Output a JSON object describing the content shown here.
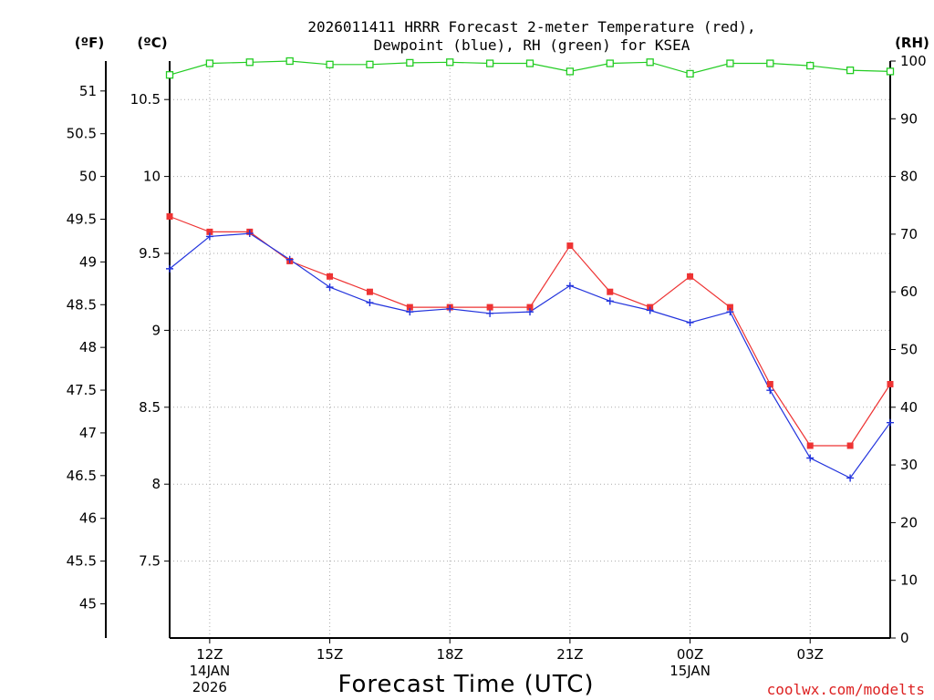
{
  "chart_data": {
    "type": "line",
    "title_line1": "2026011411 HRRR Forecast 2-meter Temperature (red),",
    "title_line2": "Dewpoint (blue), RH (green) for KSEA",
    "xlabel": "Forecast Time (UTC)",
    "credit": "coolwx.com/modelts",
    "unit_labels": {
      "fahrenheit": "(ºF)",
      "celsius": "(ºC)",
      "rh": "(RH)"
    },
    "x_ticks": [
      {
        "hour": 1,
        "label": "12Z",
        "sub1": "14JAN",
        "sub2": "2026"
      },
      {
        "hour": 4,
        "label": "15Z",
        "sub1": "",
        "sub2": ""
      },
      {
        "hour": 7,
        "label": "18Z",
        "sub1": "",
        "sub2": ""
      },
      {
        "hour": 10,
        "label": "21Z",
        "sub1": "",
        "sub2": ""
      },
      {
        "hour": 13,
        "label": "00Z",
        "sub1": "15JAN",
        "sub2": ""
      },
      {
        "hour": 16,
        "label": "03Z",
        "sub1": "",
        "sub2": ""
      }
    ],
    "x_range": [
      0,
      18
    ],
    "celsius_axis": {
      "range": [
        7.0,
        10.75
      ],
      "ticks": [
        {
          "value": 7.5,
          "label": "7.5"
        },
        {
          "value": 8,
          "label": "8"
        },
        {
          "value": 8.5,
          "label": "8.5"
        },
        {
          "value": 9,
          "label": "9"
        },
        {
          "value": 9.5,
          "label": "9.5"
        },
        {
          "value": 10,
          "label": "10"
        },
        {
          "value": 10.5,
          "label": "10.5"
        }
      ]
    },
    "fahrenheit_axis": {
      "ticks": [
        {
          "value": 45,
          "label": "45"
        },
        {
          "value": 45.5,
          "label": "45.5"
        },
        {
          "value": 46,
          "label": "46"
        },
        {
          "value": 46.5,
          "label": "46.5"
        },
        {
          "value": 47,
          "label": "47"
        },
        {
          "value": 47.5,
          "label": "47.5"
        },
        {
          "value": 48,
          "label": "48"
        },
        {
          "value": 48.5,
          "label": "48.5"
        },
        {
          "value": 49,
          "label": "49"
        },
        {
          "value": 49.5,
          "label": "49.5"
        },
        {
          "value": 50,
          "label": "50"
        },
        {
          "value": 50.5,
          "label": "50.5"
        },
        {
          "value": 51,
          "label": "51"
        }
      ]
    },
    "rh_axis": {
      "range": [
        0,
        100
      ],
      "ticks": [
        {
          "value": 0,
          "label": "0"
        },
        {
          "value": 10,
          "label": "10"
        },
        {
          "value": 20,
          "label": "20"
        },
        {
          "value": 30,
          "label": "30"
        },
        {
          "value": 40,
          "label": "40"
        },
        {
          "value": 50,
          "label": "50"
        },
        {
          "value": 60,
          "label": "60"
        },
        {
          "value": 70,
          "label": "70"
        },
        {
          "value": 80,
          "label": "80"
        },
        {
          "value": 90,
          "label": "90"
        },
        {
          "value": 100,
          "label": "100"
        }
      ]
    },
    "series": [
      {
        "name": "Temperature",
        "unit": "C",
        "color": "#ee3333",
        "marker": "square",
        "x": [
          0,
          1,
          2,
          3,
          4,
          5,
          6,
          7,
          8,
          9,
          10,
          11,
          12,
          13,
          14,
          15,
          16,
          17,
          18
        ],
        "values": [
          9.74,
          9.64,
          9.64,
          9.45,
          9.35,
          9.25,
          9.15,
          9.15,
          9.15,
          9.15,
          9.55,
          9.25,
          9.15,
          9.35,
          9.15,
          8.65,
          8.25,
          8.25,
          8.65
        ]
      },
      {
        "name": "Dewpoint",
        "unit": "C",
        "color": "#2233dd",
        "marker": "plus",
        "x": [
          0,
          1,
          2,
          3,
          4,
          5,
          6,
          7,
          8,
          9,
          10,
          11,
          12,
          13,
          14,
          15,
          16,
          17,
          18
        ],
        "values": [
          9.4,
          9.61,
          9.63,
          9.46,
          9.28,
          9.18,
          9.12,
          9.14,
          9.11,
          9.12,
          9.29,
          9.19,
          9.13,
          9.05,
          9.12,
          8.61,
          8.17,
          8.04,
          8.4
        ]
      },
      {
        "name": "RH",
        "unit": "%",
        "color": "#22cc22",
        "marker": "open-square",
        "x": [
          0,
          1,
          2,
          3,
          4,
          5,
          6,
          7,
          8,
          9,
          10,
          11,
          12,
          13,
          14,
          15,
          16,
          17,
          18
        ],
        "values": [
          97.6,
          99.6,
          99.8,
          100,
          99.4,
          99.4,
          99.7,
          99.8,
          99.6,
          99.6,
          98.2,
          99.6,
          99.8,
          97.8,
          99.6,
          99.6,
          99.2,
          98.4,
          98.2
        ]
      }
    ]
  }
}
